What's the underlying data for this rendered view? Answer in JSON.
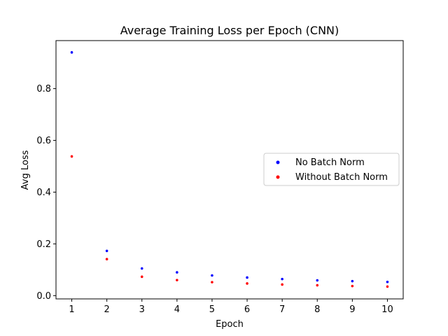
{
  "chart_data": {
    "type": "scatter",
    "title": "Average Training Loss per Epoch (CNN)",
    "xlabel": "Epoch",
    "ylabel": "Avg Loss",
    "x": [
      1,
      2,
      3,
      4,
      5,
      6,
      7,
      8,
      9,
      10
    ],
    "x_ticks": [
      "1",
      "2",
      "3",
      "4",
      "5",
      "6",
      "7",
      "8",
      "9",
      "10"
    ],
    "y_ticks": [
      "0.0",
      "0.2",
      "0.4",
      "0.6",
      "0.8"
    ],
    "xlim": [
      0.55,
      10.45
    ],
    "ylim": [
      -0.0126,
      0.9856
    ],
    "grid": false,
    "legend_position": "center-right",
    "series": [
      {
        "name": "No Batch Norm",
        "color": "#0000ff",
        "values": [
          0.94,
          0.173,
          0.105,
          0.09,
          0.078,
          0.07,
          0.064,
          0.059,
          0.056,
          0.053
        ]
      },
      {
        "name": "Without Batch Norm",
        "color": "#ff0000",
        "values": [
          0.538,
          0.141,
          0.073,
          0.06,
          0.052,
          0.047,
          0.043,
          0.04,
          0.037,
          0.035
        ]
      }
    ]
  }
}
